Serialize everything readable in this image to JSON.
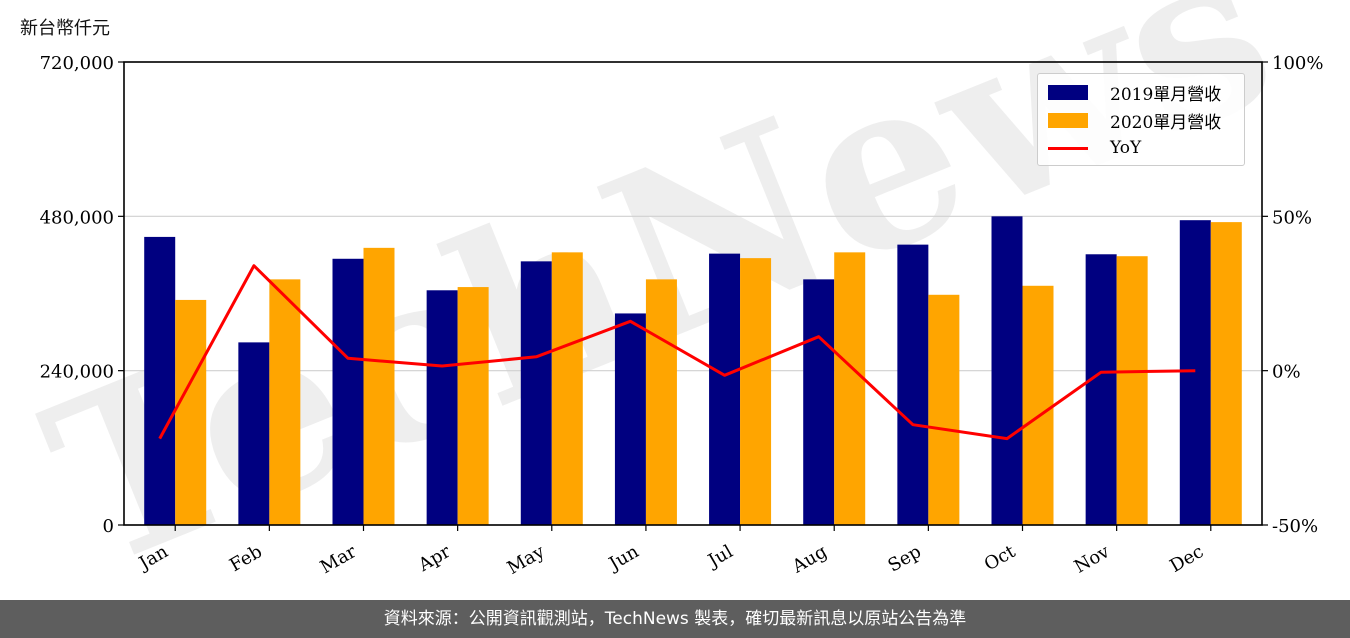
{
  "y_unit_label": "新台幣仟元",
  "footer_text": "資料來源：公開資訊觀測站，TechNews 製表，確切最新訊息以原站公告為準",
  "watermark": "TechNews",
  "chart_data": {
    "type": "bar",
    "categories": [
      "Jan",
      "Feb",
      "Mar",
      "Apr",
      "May",
      "Jun",
      "Jul",
      "Aug",
      "Sep",
      "Oct",
      "Nov",
      "Dec"
    ],
    "series": [
      {
        "name": "2019單月營收",
        "type": "bar",
        "axis": "left",
        "color": "#000080",
        "values": [
          448000,
          284000,
          414000,
          365000,
          410000,
          329000,
          422000,
          382000,
          436000,
          480000,
          421000,
          474000
        ]
      },
      {
        "name": "2020單月營收",
        "type": "bar",
        "axis": "left",
        "color": "#FFA500",
        "values": [
          350000,
          382000,
          431000,
          370000,
          424000,
          382000,
          415000,
          424000,
          358000,
          372000,
          418000,
          471000
        ]
      },
      {
        "name": "YoY",
        "type": "line",
        "axis": "right",
        "color": "#FF0000",
        "values": [
          -22,
          34,
          4,
          1.5,
          4.5,
          16,
          -1.5,
          11,
          -17.5,
          -22,
          -0.5,
          0
        ]
      }
    ],
    "ylim": [
      0,
      720000
    ],
    "yticks": [
      "0",
      "240,000",
      "480,000",
      "720,000"
    ],
    "y2lim": [
      -50,
      100
    ],
    "y2ticks": [
      "-50%",
      "0%",
      "50%",
      "100%"
    ],
    "grid": true,
    "legend": "top-right"
  }
}
